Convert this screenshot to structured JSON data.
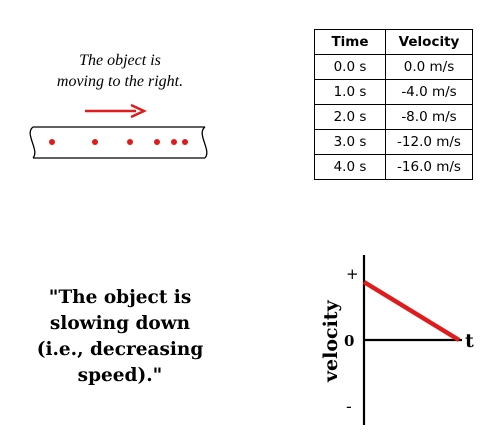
{
  "motion_diagram": {
    "caption_line1": "The object is",
    "caption_line2": "moving to the right.",
    "arrow_color": "#e01b1b",
    "dot_color": "#e01b1b"
  },
  "table": {
    "headers": [
      "Time",
      "Velocity"
    ],
    "rows": [
      [
        "0.0 s",
        "0.0 m/s"
      ],
      [
        "1.0 s",
        "-4.0 m/s"
      ],
      [
        "2.0 s",
        "-8.0 m/s"
      ],
      [
        "3.0 s",
        "-12.0 m/s"
      ],
      [
        "4.0 s",
        "-16.0 m/s"
      ]
    ]
  },
  "statement": {
    "line1": "\"The object is",
    "line2": "slowing down",
    "line3": "(i.e., decreasing",
    "line4": "speed).\""
  },
  "graph": {
    "ylabel": "velocity",
    "xlabel": "t",
    "plus_label": "+",
    "zero_label": "0",
    "minus_label": "-",
    "line_color": "#e01b1b"
  }
}
